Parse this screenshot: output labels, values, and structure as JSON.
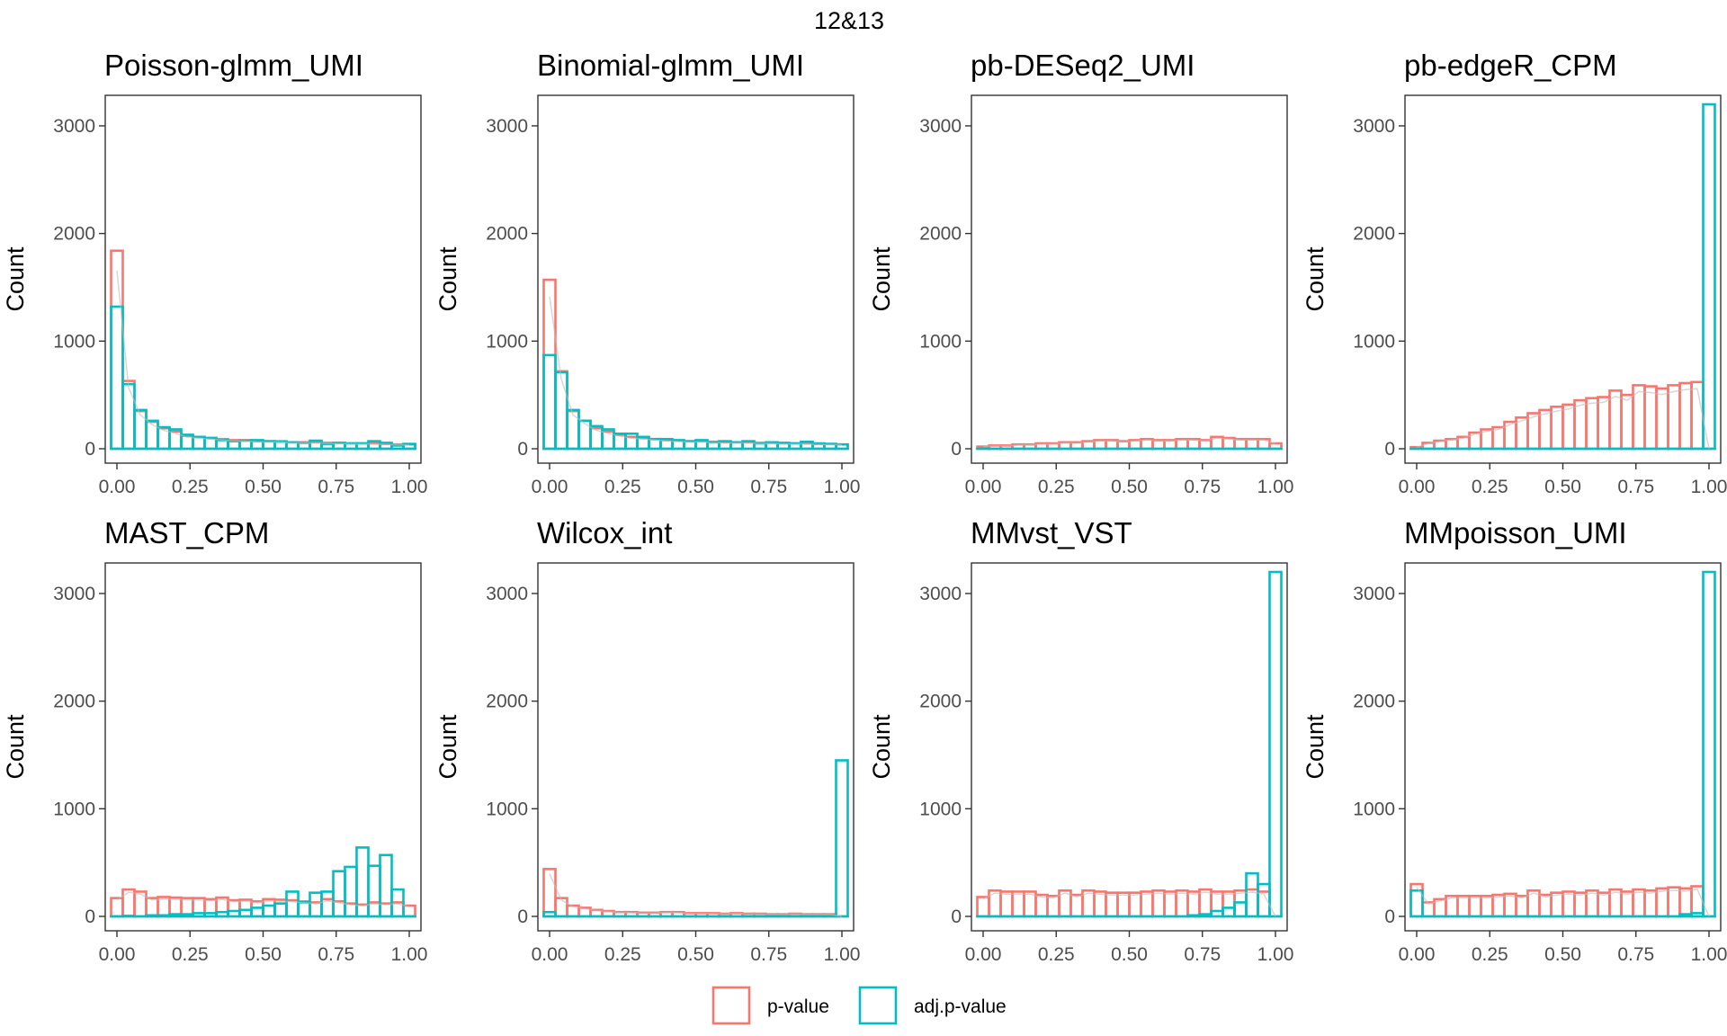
{
  "title": "12&13",
  "colors": {
    "p_value": "#F8766D",
    "adj_p_value": "#00BFC4",
    "density": "#bdbdbd",
    "panel_border": "#333333"
  },
  "legend": {
    "position": "bottom",
    "items": [
      {
        "label": "p-value",
        "key": "p_value"
      },
      {
        "label": "adj.p-value",
        "key": "adj_p_value"
      }
    ]
  },
  "chart_data": [
    {
      "type": "histogram",
      "title": "Poisson-glmm_UMI",
      "ylabel": "Count",
      "xlabel": "",
      "bin_width": 0.04,
      "xlim": [
        -0.04,
        1.04
      ],
      "ylim": [
        0,
        3150
      ],
      "x_ticks": [
        "0.00",
        "0.25",
        "0.50",
        "0.75",
        "1.00"
      ],
      "y_ticks": [
        "0",
        "1000",
        "2000",
        "3000"
      ],
      "series": [
        {
          "name": "p-value",
          "values": [
            1840,
            630,
            350,
            250,
            190,
            160,
            120,
            110,
            100,
            90,
            80,
            80,
            70,
            70,
            70,
            60,
            60,
            60,
            55,
            55,
            50,
            50,
            50,
            45,
            40,
            40
          ]
        },
        {
          "name": "adj.p-value",
          "values": [
            1320,
            600,
            360,
            260,
            200,
            180,
            130,
            110,
            100,
            80,
            70,
            75,
            80,
            70,
            65,
            60,
            55,
            75,
            45,
            55,
            50,
            50,
            70,
            55,
            30,
            45
          ]
        }
      ]
    },
    {
      "type": "histogram",
      "title": "Binomial-glmm_UMI",
      "ylabel": "Count",
      "xlabel": "",
      "bin_width": 0.04,
      "xlim": [
        -0.04,
        1.04
      ],
      "ylim": [
        0,
        3150
      ],
      "x_ticks": [
        "0.00",
        "0.25",
        "0.50",
        "0.75",
        "1.00"
      ],
      "y_ticks": [
        "0",
        "1000",
        "2000",
        "3000"
      ],
      "series": [
        {
          "name": "p-value",
          "values": [
            1570,
            720,
            350,
            260,
            190,
            160,
            130,
            110,
            100,
            90,
            80,
            75,
            70,
            70,
            65,
            60,
            60,
            60,
            55,
            55,
            50,
            50,
            50,
            45,
            45,
            40
          ]
        },
        {
          "name": "adj.p-value",
          "values": [
            870,
            710,
            360,
            260,
            210,
            180,
            140,
            140,
            110,
            90,
            90,
            80,
            70,
            80,
            60,
            70,
            60,
            70,
            50,
            60,
            55,
            50,
            65,
            50,
            45,
            40
          ]
        }
      ]
    },
    {
      "type": "histogram",
      "title": "pb-DESeq2_UMI",
      "ylabel": "Count",
      "xlabel": "",
      "bin_width": 0.04,
      "xlim": [
        -0.04,
        1.04
      ],
      "ylim": [
        0,
        3150
      ],
      "x_ticks": [
        "0.00",
        "0.25",
        "0.50",
        "0.75",
        "1.00"
      ],
      "y_ticks": [
        "0",
        "1000",
        "2000",
        "3000"
      ],
      "series": [
        {
          "name": "p-value",
          "values": [
            20,
            30,
            30,
            40,
            40,
            50,
            50,
            60,
            60,
            70,
            80,
            80,
            70,
            80,
            90,
            80,
            80,
            90,
            90,
            80,
            110,
            100,
            90,
            90,
            90,
            50
          ]
        },
        {
          "name": "adj.p-value",
          "values": [
            0,
            0,
            0,
            0,
            0,
            0,
            0,
            0,
            0,
            0,
            0,
            0,
            0,
            0,
            0,
            0,
            0,
            0,
            0,
            0,
            0,
            0,
            0,
            0,
            0,
            0
          ]
        }
      ]
    },
    {
      "type": "histogram",
      "title": "pb-edgeR_CPM",
      "ylabel": "Count",
      "xlabel": "",
      "bin_width": 0.04,
      "xlim": [
        -0.04,
        1.04
      ],
      "ylim": [
        0,
        3150
      ],
      "x_ticks": [
        "0.00",
        "0.25",
        "0.50",
        "0.75",
        "1.00"
      ],
      "y_ticks": [
        "0",
        "1000",
        "2000",
        "3000"
      ],
      "series": [
        {
          "name": "p-value",
          "values": [
            15,
            55,
            75,
            90,
            110,
            150,
            180,
            200,
            250,
            290,
            330,
            360,
            390,
            410,
            450,
            470,
            480,
            540,
            500,
            590,
            580,
            560,
            590,
            610,
            620,
            0
          ]
        },
        {
          "name": "adj.p-value",
          "values": [
            0,
            0,
            0,
            0,
            0,
            0,
            0,
            0,
            0,
            0,
            0,
            0,
            0,
            0,
            0,
            0,
            0,
            0,
            0,
            0,
            0,
            0,
            0,
            0,
            0,
            3200
          ]
        }
      ]
    },
    {
      "type": "histogram",
      "title": "MAST_CPM",
      "ylabel": "Count",
      "xlabel": "",
      "bin_width": 0.04,
      "xlim": [
        -0.04,
        1.04
      ],
      "ylim": [
        0,
        3150
      ],
      "x_ticks": [
        "0.00",
        "0.25",
        "0.50",
        "0.75",
        "1.00"
      ],
      "y_ticks": [
        "0",
        "1000",
        "2000",
        "3000"
      ],
      "series": [
        {
          "name": "p-value",
          "values": [
            170,
            250,
            230,
            170,
            180,
            175,
            170,
            170,
            160,
            175,
            150,
            155,
            140,
            160,
            155,
            150,
            140,
            130,
            160,
            140,
            120,
            110,
            130,
            120,
            130,
            100
          ]
        },
        {
          "name": "adj.p-value",
          "values": [
            0,
            5,
            0,
            10,
            10,
            20,
            20,
            30,
            30,
            40,
            50,
            60,
            80,
            100,
            120,
            230,
            130,
            220,
            230,
            420,
            460,
            640,
            470,
            570,
            250,
            0
          ]
        }
      ]
    },
    {
      "type": "histogram",
      "title": "Wilcox_int",
      "ylabel": "Count",
      "xlabel": "",
      "bin_width": 0.04,
      "xlim": [
        -0.04,
        1.04
      ],
      "ylim": [
        0,
        3150
      ],
      "x_ticks": [
        "0.00",
        "0.25",
        "0.50",
        "0.75",
        "1.00"
      ],
      "y_ticks": [
        "0",
        "1000",
        "2000",
        "3000"
      ],
      "series": [
        {
          "name": "p-value",
          "values": [
            440,
            170,
            100,
            80,
            60,
            50,
            40,
            40,
            35,
            35,
            40,
            40,
            30,
            30,
            30,
            25,
            30,
            25,
            25,
            20,
            20,
            25,
            20,
            20,
            20,
            0
          ]
        },
        {
          "name": "adj.p-value",
          "values": [
            40,
            0,
            0,
            0,
            0,
            0,
            0,
            0,
            0,
            0,
            0,
            0,
            0,
            0,
            0,
            0,
            0,
            0,
            0,
            0,
            0,
            0,
            0,
            0,
            0,
            1450
          ]
        }
      ]
    },
    {
      "type": "histogram",
      "title": "MMvst_VST",
      "ylabel": "Count",
      "xlabel": "",
      "bin_width": 0.04,
      "xlim": [
        -0.04,
        1.04
      ],
      "ylim": [
        0,
        3150
      ],
      "x_ticks": [
        "0.00",
        "0.25",
        "0.50",
        "0.75",
        "1.00"
      ],
      "y_ticks": [
        "0",
        "1000",
        "2000",
        "3000"
      ],
      "series": [
        {
          "name": "p-value",
          "values": [
            180,
            240,
            230,
            230,
            230,
            200,
            190,
            240,
            200,
            240,
            230,
            220,
            220,
            220,
            230,
            240,
            230,
            240,
            230,
            250,
            230,
            230,
            240,
            250,
            230,
            0
          ]
        },
        {
          "name": "adj.p-value",
          "values": [
            0,
            0,
            0,
            0,
            0,
            0,
            0,
            0,
            0,
            0,
            0,
            0,
            0,
            0,
            0,
            0,
            0,
            0,
            10,
            20,
            50,
            80,
            130,
            400,
            300,
            3200
          ]
        }
      ]
    },
    {
      "type": "histogram",
      "title": "MMpoisson_UMI",
      "ylabel": "Count",
      "xlabel": "",
      "bin_width": 0.04,
      "xlim": [
        -0.04,
        1.04
      ],
      "ylim": [
        0,
        3150
      ],
      "x_ticks": [
        "0.00",
        "0.25",
        "0.50",
        "0.75",
        "1.00"
      ],
      "y_ticks": [
        "0",
        "1000",
        "2000",
        "3000"
      ],
      "series": [
        {
          "name": "p-value",
          "values": [
            300,
            130,
            160,
            190,
            190,
            190,
            190,
            200,
            210,
            190,
            240,
            200,
            220,
            230,
            220,
            240,
            220,
            250,
            230,
            250,
            240,
            260,
            270,
            260,
            280,
            0
          ]
        },
        {
          "name": "adj.p-value",
          "values": [
            240,
            0,
            0,
            0,
            0,
            0,
            0,
            0,
            0,
            0,
            0,
            0,
            0,
            0,
            0,
            0,
            0,
            0,
            0,
            0,
            0,
            0,
            0,
            20,
            30,
            3200
          ]
        }
      ]
    }
  ]
}
